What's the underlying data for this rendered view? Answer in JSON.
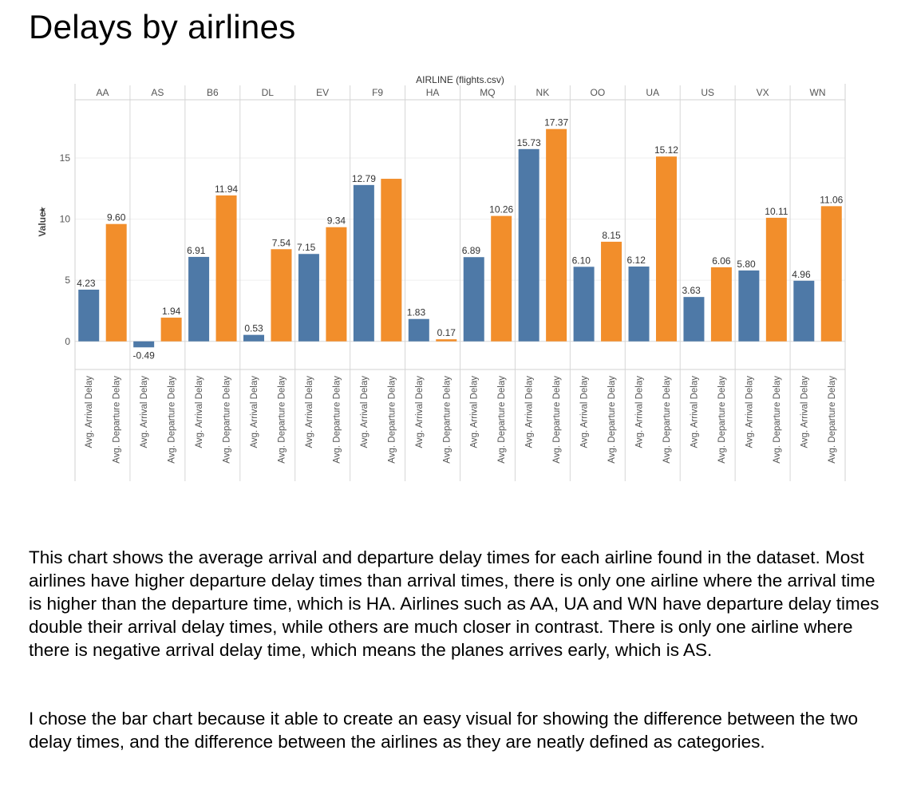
{
  "page": {
    "title": "Delays by airlines",
    "paragraphs": [
      "This chart shows the average arrival and departure delay times for each airline found in the dataset. Most airlines have higher departure delay times than arrival times, there is only one airline where the arrival time is higher than the departure time, which is HA. Airlines such as AA, UA and WN have departure delay times double their arrival delay times, while others are much closer in contrast. There is only one airline where there is negative arrival delay time, which means the planes arrives early, which is AS.",
      "I chose the bar chart because it able to create an easy visual for showing the difference between the two delay times, and the difference between the airlines as they are neatly defined as categories."
    ]
  },
  "chart_data": {
    "type": "bar",
    "title": "",
    "column_header": "AIRLINE (flights.csv)",
    "ylabel": "Value",
    "ylabel_icon": "star-sort-icon",
    "ylim": [
      -2.3,
      19.7
    ],
    "yticks": [
      0,
      5,
      10,
      15
    ],
    "grid": true,
    "categories": [
      "AA",
      "AS",
      "B6",
      "DL",
      "EV",
      "F9",
      "HA",
      "MQ",
      "NK",
      "OO",
      "UA",
      "US",
      "VX",
      "WN"
    ],
    "measures": [
      "Avg. Arrival Delay",
      "Avg. Departure Delay"
    ],
    "series": [
      {
        "name": "Avg. Arrival Delay",
        "color": "#4e79a7",
        "values": [
          4.23,
          -0.49,
          6.91,
          0.53,
          7.15,
          12.79,
          1.83,
          6.89,
          15.73,
          6.1,
          6.12,
          3.63,
          5.8,
          4.96
        ],
        "labels": [
          "4.23",
          "-0.49",
          "6.91",
          "0.53",
          "7.15",
          "12.79",
          "1.83",
          "6.89",
          "15.73",
          "6.10",
          "6.12",
          "3.63",
          "5.80",
          "4.96"
        ]
      },
      {
        "name": "Avg. Departure Delay",
        "color": "#f28e2b",
        "values": [
          9.6,
          1.94,
          11.94,
          7.54,
          9.34,
          13.3,
          0.17,
          10.26,
          17.37,
          8.15,
          15.12,
          6.06,
          10.11,
          11.06
        ],
        "labels": [
          "9.60",
          "1.94",
          "11.94",
          "7.54",
          "9.34",
          "",
          "0.17",
          "10.26",
          "17.37",
          "8.15",
          "15.12",
          "6.06",
          "10.11",
          "11.06"
        ]
      }
    ]
  }
}
